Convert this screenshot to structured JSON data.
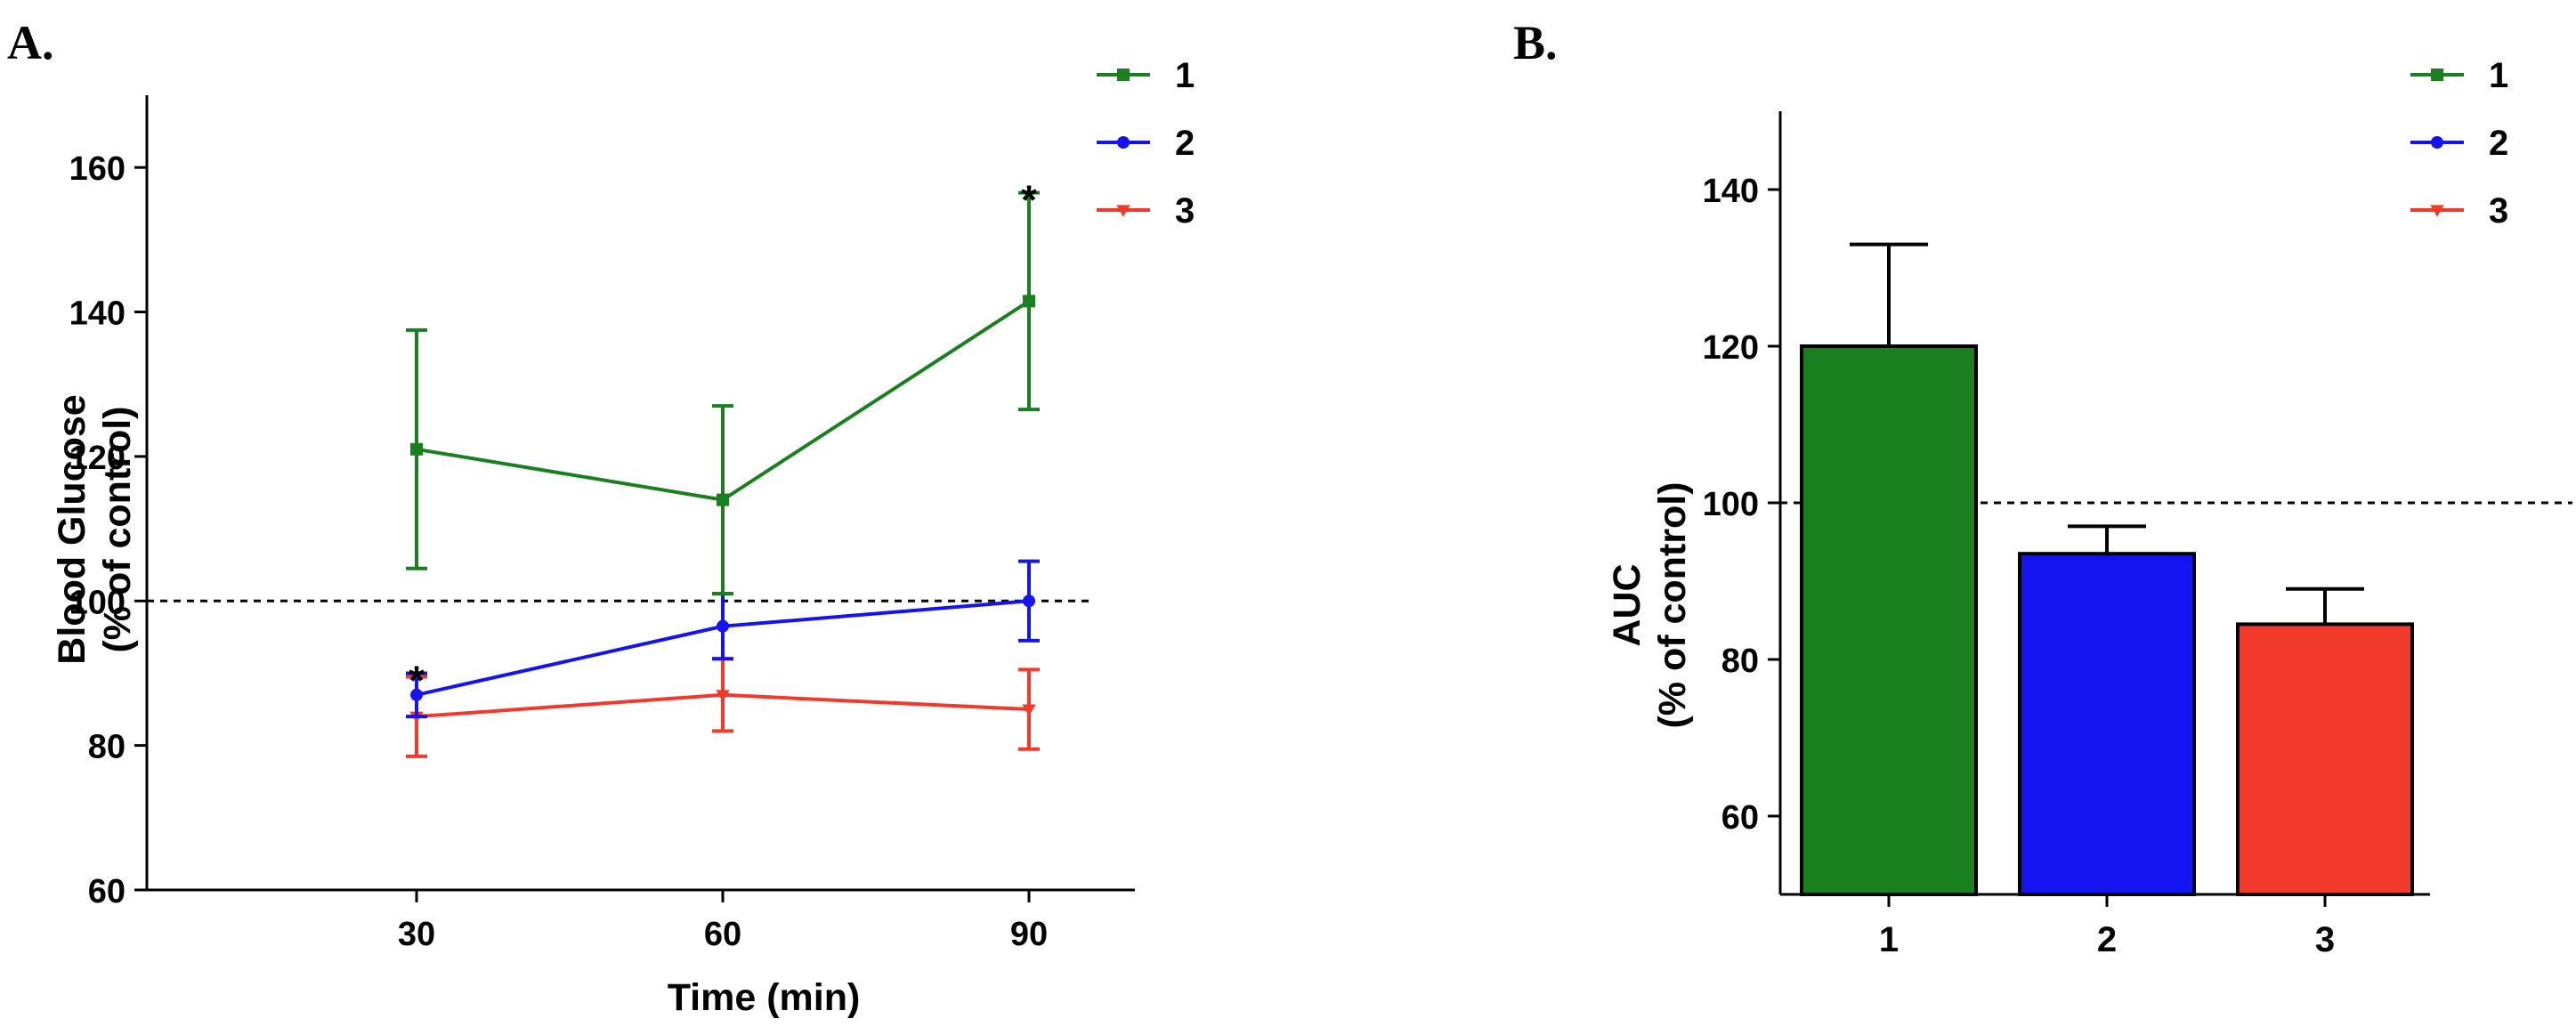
{
  "colors": {
    "series_1": "#1a7f1f",
    "series_2": "#1414f0",
    "series_3": "#f23a2c",
    "axis": "#000000"
  },
  "chart_data": [
    {
      "panel": "A.",
      "type": "line",
      "xlabel": "Time (min)",
      "ylabel_line1": "Blood Glucose",
      "ylabel_line2": "(% of control)",
      "x": [
        30,
        60,
        90
      ],
      "x_tick_labels": [
        "30",
        "60",
        "90"
      ],
      "ylim": [
        60,
        170
      ],
      "y_ticks": [
        60,
        80,
        100,
        120,
        140,
        160
      ],
      "reference_line": 100,
      "legend": {
        "placement": "top-right"
      },
      "series": [
        {
          "name": "1",
          "marker": "square",
          "values": [
            121,
            114,
            141.5
          ],
          "errors": [
            16.5,
            13,
            15
          ]
        },
        {
          "name": "2",
          "marker": "circle",
          "values": [
            87,
            96.5,
            100
          ],
          "errors": [
            3,
            4.5,
            5.5
          ]
        },
        {
          "name": "3",
          "marker": "triangle-down",
          "values": [
            84,
            87,
            85
          ],
          "errors": [
            5.5,
            5,
            5.5
          ]
        }
      ],
      "annotations": [
        {
          "text": "*",
          "x": 30,
          "y": 90.5
        },
        {
          "text": "*",
          "x": 90,
          "y": 157
        }
      ]
    },
    {
      "panel": "B.",
      "type": "bar",
      "ylabel_line1": "AUC",
      "ylabel_line2": "(% of control)",
      "categories": [
        "1",
        "2",
        "3"
      ],
      "values": [
        120,
        93.5,
        84.5
      ],
      "errors": [
        13,
        3.5,
        4.5
      ],
      "ylim": [
        50,
        150
      ],
      "y_ticks": [
        60,
        80,
        100,
        120,
        140
      ],
      "reference_line": 100,
      "legend": {
        "placement": "top-right",
        "entries": [
          {
            "name": "1",
            "marker": "square"
          },
          {
            "name": "2",
            "marker": "circle"
          },
          {
            "name": "3",
            "marker": "triangle-down"
          }
        ]
      }
    }
  ]
}
